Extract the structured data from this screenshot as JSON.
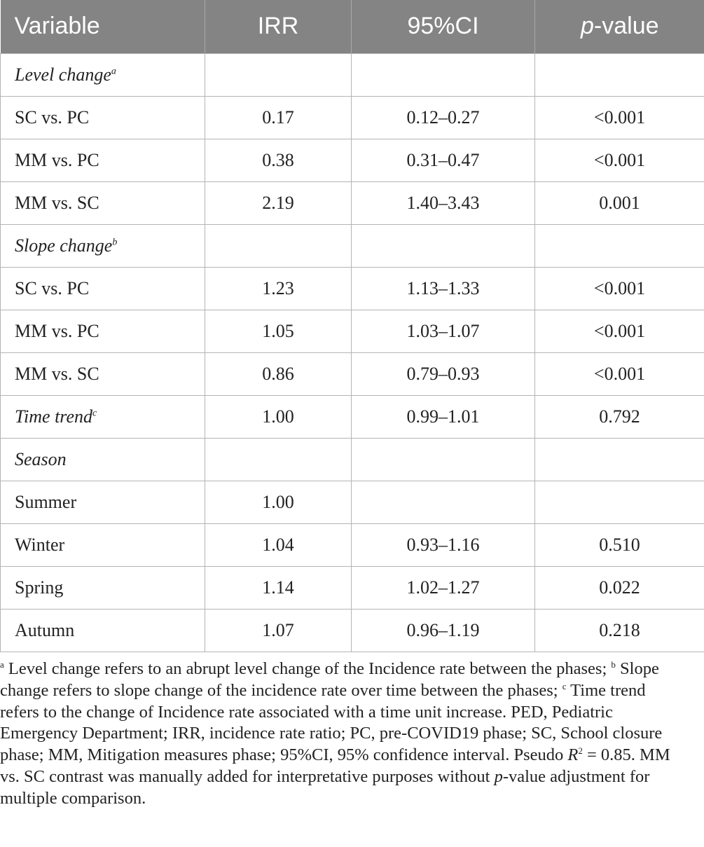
{
  "table": {
    "headers": [
      "Variable",
      "IRR",
      "95%CI",
      "p-value"
    ],
    "header_pvalue_italic": "p",
    "header_pvalue_rest": "-value",
    "rows": [
      {
        "label": "Level change",
        "sup": "a",
        "italic": true,
        "irr": "",
        "ci": "",
        "p": ""
      },
      {
        "label": "SC vs. PC",
        "irr": "0.17",
        "ci": "0.12–0.27",
        "p": "<0.001"
      },
      {
        "label": "MM vs. PC",
        "irr": "0.38",
        "ci": "0.31–0.47",
        "p": "<0.001"
      },
      {
        "label": "MM vs. SC",
        "irr": "2.19",
        "ci": "1.40–3.43",
        "p": "0.001"
      },
      {
        "label": "Slope change",
        "sup": "b",
        "italic": true,
        "irr": "",
        "ci": "",
        "p": ""
      },
      {
        "label": "SC vs. PC",
        "irr": "1.23",
        "ci": "1.13–1.33",
        "p": "<0.001"
      },
      {
        "label": "MM vs. PC",
        "irr": "1.05",
        "ci": "1.03–1.07",
        "p": "<0.001"
      },
      {
        "label": "MM vs. SC",
        "irr": "0.86",
        "ci": "0.79–0.93",
        "p": "<0.001"
      },
      {
        "label": "Time trend",
        "sup": "c",
        "italic": true,
        "irr": "1.00",
        "ci": "0.99–1.01",
        "p": "0.792"
      },
      {
        "label": "Season",
        "italic": true,
        "irr": "",
        "ci": "",
        "p": ""
      },
      {
        "label": "Summer",
        "irr": "1.00",
        "ci": "",
        "p": ""
      },
      {
        "label": "Winter",
        "irr": "1.04",
        "ci": "0.93–1.16",
        "p": "0.510"
      },
      {
        "label": "Spring",
        "irr": "1.14",
        "ci": "1.02–1.27",
        "p": "0.022"
      },
      {
        "label": "Autumn",
        "irr": "1.07",
        "ci": "0.96–1.19",
        "p": "0.218"
      }
    ]
  },
  "footnote": {
    "sup_a": "a",
    "text_a": " Level change refers to an abrupt level change of the Incidence rate between the phases; ",
    "sup_b": "b",
    "text_b": " Slope change refers to slope change of the incidence rate over time between the phases; ",
    "sup_c": "c",
    "text_c": " Time trend refers to the change of Incidence rate associated with a time unit increase. PED, Pediatric Emergency Department; IRR, incidence rate ratio; PC, pre-COVID19 phase; SC, School closure phase; MM, Mitigation measures phase; 95%CI, 95% confidence interval. Pseudo ",
    "r_symbol": "R",
    "r_sup": "2",
    "text_r": " = 0.85. MM vs. SC contrast was manually added for interpretative purposes without ",
    "p_italic": "p",
    "text_end": "-value adjustment for multiple comparison."
  }
}
